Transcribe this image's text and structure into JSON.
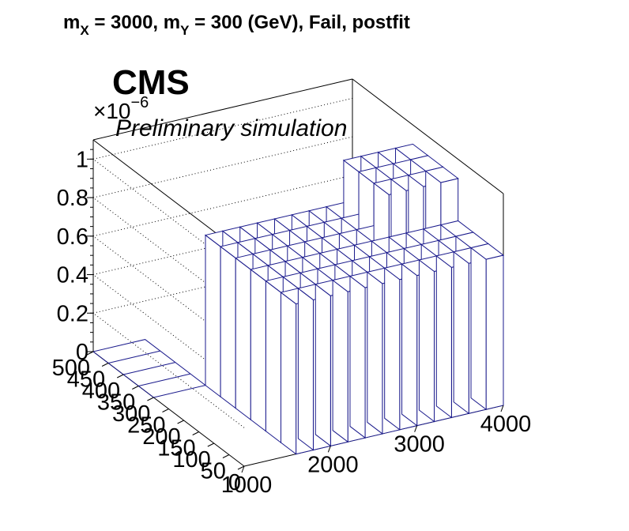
{
  "title": {
    "m_label": "m",
    "x_sub": "X",
    "mx_eq": " = 3000, m",
    "y_sub": "Y",
    "rest": " = 300 (GeV), Fail, postfit"
  },
  "cms_label": "CMS",
  "preliminary_label": "Preliminary simulation",
  "exponent": {
    "base": "×10",
    "power": "−6"
  },
  "chart_data": {
    "type": "lego",
    "title": "m_X = 3000, m_Y = 300 (GeV), Fail, postfit",
    "x_axis": {
      "range": [
        1000,
        4000
      ],
      "ticks": [
        "1000",
        "2000",
        "3000",
        "4000"
      ]
    },
    "y_axis": {
      "range": [
        0,
        500
      ],
      "ticks": [
        "0",
        "50",
        "100",
        "150",
        "200",
        "250",
        "300",
        "350",
        "400",
        "450",
        "500"
      ]
    },
    "z_axis": {
      "range": [
        0,
        1.1
      ],
      "multiplier": 1e-06,
      "ticks": [
        "0",
        "0.2",
        "0.4",
        "0.6",
        "0.8",
        "1"
      ]
    },
    "colors": {
      "edges": "#1a1a8c",
      "frame": "#000000"
    }
  }
}
